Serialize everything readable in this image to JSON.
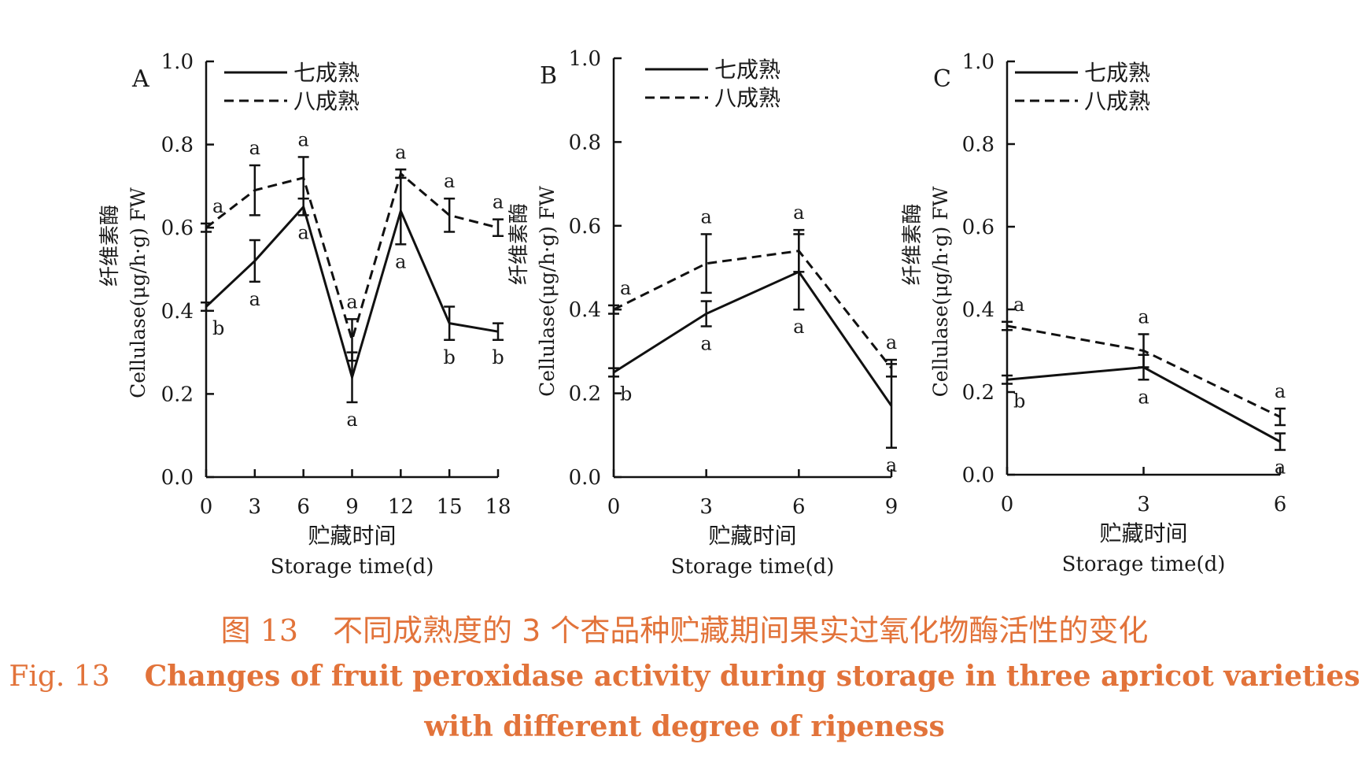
{
  "caption": {
    "cn_label": "图 13",
    "cn_text": "不同成熟度的 3 个杏品种贮藏期间果实过氧化物酶活性的变化",
    "en_label": "Fig. 13",
    "en_text_line1": "Changes of fruit peroxidase activity during storage in three apricot varieties",
    "en_text_line2": "with different degree of ripeness"
  },
  "chart_data": [
    {
      "panel": "A",
      "type": "line",
      "xlabel_cn": "贮藏时间",
      "xlabel_en": "Storage time(d)",
      "ylabel_cn": "纤维素酶",
      "ylabel_en": "Cellulase(μg/h·g) FW",
      "x": [
        0,
        3,
        6,
        9,
        12,
        15,
        18
      ],
      "xticks": [
        "0",
        "3",
        "6",
        "9",
        "12",
        "15",
        "18"
      ],
      "ylim": [
        0,
        1.0
      ],
      "yticks": [
        "0.0",
        "0.2",
        "0.4",
        "0.6",
        "0.8",
        "1.0"
      ],
      "legend_position": "top-left",
      "series": [
        {
          "name": "七成熟",
          "style": "solid",
          "values": [
            0.41,
            0.52,
            0.65,
            0.24,
            0.64,
            0.37,
            0.35
          ],
          "errors": [
            0.01,
            0.05,
            0.02,
            0.06,
            0.08,
            0.04,
            0.02
          ],
          "letters": [
            "b",
            "a",
            "a",
            "a",
            "a",
            "b",
            "b"
          ]
        },
        {
          "name": "八成熟",
          "style": "dashed",
          "values": [
            0.6,
            0.69,
            0.72,
            0.33,
            0.73,
            0.63,
            0.6
          ],
          "errors": [
            0.01,
            0.06,
            0.05,
            0.05,
            0.01,
            0.04,
            0.02
          ],
          "letters": [
            "a",
            "a",
            "a",
            "a",
            "a",
            "a",
            "a"
          ]
        }
      ]
    },
    {
      "panel": "B",
      "type": "line",
      "xlabel_cn": "贮藏时间",
      "xlabel_en": "Storage time(d)",
      "ylabel_cn": "纤维素酶",
      "ylabel_en": "Cellulase(μg/h·g) FW",
      "x": [
        0,
        3,
        6,
        9
      ],
      "xticks": [
        "0",
        "3",
        "6",
        "9"
      ],
      "ylim": [
        0,
        1.0
      ],
      "yticks": [
        "0.0",
        "0.2",
        "0.4",
        "0.6",
        "0.8",
        "1.0"
      ],
      "legend_position": "top-left",
      "series": [
        {
          "name": "七成熟",
          "style": "solid",
          "values": [
            0.25,
            0.39,
            0.49,
            0.17
          ],
          "errors": [
            0.01,
            0.03,
            0.09,
            0.1
          ],
          "letters": [
            "b",
            "a",
            "a",
            "a"
          ]
        },
        {
          "name": "八成熟",
          "style": "dashed",
          "values": [
            0.4,
            0.51,
            0.54,
            0.26
          ],
          "errors": [
            0.01,
            0.07,
            0.05,
            0.02
          ],
          "letters": [
            "a",
            "a",
            "a",
            "a"
          ]
        }
      ]
    },
    {
      "panel": "C",
      "type": "line",
      "xlabel_cn": "贮藏时间",
      "xlabel_en": "Storage time(d)",
      "ylabel_cn": "纤维素酶",
      "ylabel_en": "Cellulase(μg/h·g) FW",
      "x": [
        0,
        3,
        6
      ],
      "xticks": [
        "0",
        "3",
        "6"
      ],
      "ylim": [
        0,
        1.0
      ],
      "yticks": [
        "0.0",
        "0.2",
        "0.4",
        "0.6",
        "0.8",
        "1.0"
      ],
      "legend_position": "top-left",
      "series": [
        {
          "name": "七成熟",
          "style": "solid",
          "values": [
            0.23,
            0.26,
            0.08
          ],
          "errors": [
            0.01,
            0.03,
            0.02
          ],
          "letters": [
            "b",
            "a",
            "a"
          ]
        },
        {
          "name": "八成熟",
          "style": "dashed",
          "values": [
            0.36,
            0.3,
            0.14
          ],
          "errors": [
            0.01,
            0.04,
            0.02
          ],
          "letters": [
            "a",
            "a",
            "a"
          ]
        }
      ]
    }
  ]
}
